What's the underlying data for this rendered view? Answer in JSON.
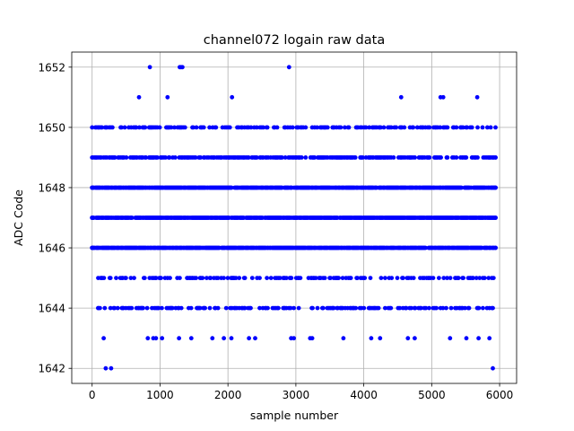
{
  "chart_data": {
    "type": "scatter",
    "title": "channel072 logain raw data",
    "xlabel": "sample number",
    "ylabel": "ADC Code",
    "xlim": [
      -300,
      6250
    ],
    "ylim": [
      1641.5,
      1652.5
    ],
    "xticks": [
      0,
      1000,
      2000,
      3000,
      4000,
      5000,
      6000
    ],
    "xtick_labels": [
      "0",
      "1000",
      "2000",
      "3000",
      "4000",
      "5000",
      "6000"
    ],
    "yticks": [
      1642,
      1644,
      1646,
      1648,
      1650,
      1652
    ],
    "ytick_labels": [
      "1642",
      "1644",
      "1646",
      "1648",
      "1650",
      "1652"
    ],
    "grid": true,
    "legend": "none",
    "series": [
      {
        "color": "#0000ff",
        "marker": "circle",
        "n_samples": 5940,
        "dense_levels": [
          {
            "y": 1646,
            "x_range": [
              0,
              5940
            ],
            "coverage": "continuous"
          },
          {
            "y": 1647,
            "x_range": [
              0,
              5940
            ],
            "coverage": "continuous"
          },
          {
            "y": 1648,
            "x_range": [
              0,
              5940
            ],
            "coverage": "continuous"
          }
        ],
        "sparse_levels": [
          {
            "y": 1649,
            "x_range": [
              0,
              5940
            ],
            "coverage": "dense with small gaps"
          },
          {
            "y": 1650,
            "x_range": [
              0,
              5940
            ],
            "coverage": "frequent, with gaps"
          },
          {
            "y": 1645,
            "x_range": [
              90,
              5910
            ],
            "coverage": "frequent, with gaps"
          },
          {
            "y": 1644,
            "x_range": [
              90,
              5900
            ],
            "coverage": "frequent, with gaps"
          }
        ],
        "outliers": [
          {
            "x": 850,
            "y": 1652
          },
          {
            "x": 1290,
            "y": 1652
          },
          {
            "x": 1310,
            "y": 1652
          },
          {
            "x": 1330,
            "y": 1652
          },
          {
            "x": 2900,
            "y": 1652
          },
          {
            "x": 690,
            "y": 1651
          },
          {
            "x": 1110,
            "y": 1651
          },
          {
            "x": 2060,
            "y": 1651
          },
          {
            "x": 4550,
            "y": 1651
          },
          {
            "x": 5130,
            "y": 1651
          },
          {
            "x": 5170,
            "y": 1651
          },
          {
            "x": 5670,
            "y": 1651
          },
          {
            "x": 170,
            "y": 1643
          },
          {
            "x": 820,
            "y": 1643
          },
          {
            "x": 900,
            "y": 1643
          },
          {
            "x": 940,
            "y": 1643
          },
          {
            "x": 1030,
            "y": 1643
          },
          {
            "x": 1280,
            "y": 1643
          },
          {
            "x": 1460,
            "y": 1643
          },
          {
            "x": 1770,
            "y": 1643
          },
          {
            "x": 1940,
            "y": 1643
          },
          {
            "x": 2050,
            "y": 1643
          },
          {
            "x": 2310,
            "y": 1643
          },
          {
            "x": 2400,
            "y": 1643
          },
          {
            "x": 2930,
            "y": 1643
          },
          {
            "x": 2970,
            "y": 1643
          },
          {
            "x": 3210,
            "y": 1643
          },
          {
            "x": 3240,
            "y": 1643
          },
          {
            "x": 3700,
            "y": 1643
          },
          {
            "x": 4110,
            "y": 1643
          },
          {
            "x": 4240,
            "y": 1643
          },
          {
            "x": 4650,
            "y": 1643
          },
          {
            "x": 4750,
            "y": 1643
          },
          {
            "x": 5270,
            "y": 1643
          },
          {
            "x": 5510,
            "y": 1643
          },
          {
            "x": 5690,
            "y": 1643
          },
          {
            "x": 5850,
            "y": 1643
          },
          {
            "x": 200,
            "y": 1642
          },
          {
            "x": 280,
            "y": 1642
          },
          {
            "x": 5900,
            "y": 1642
          }
        ]
      }
    ]
  }
}
